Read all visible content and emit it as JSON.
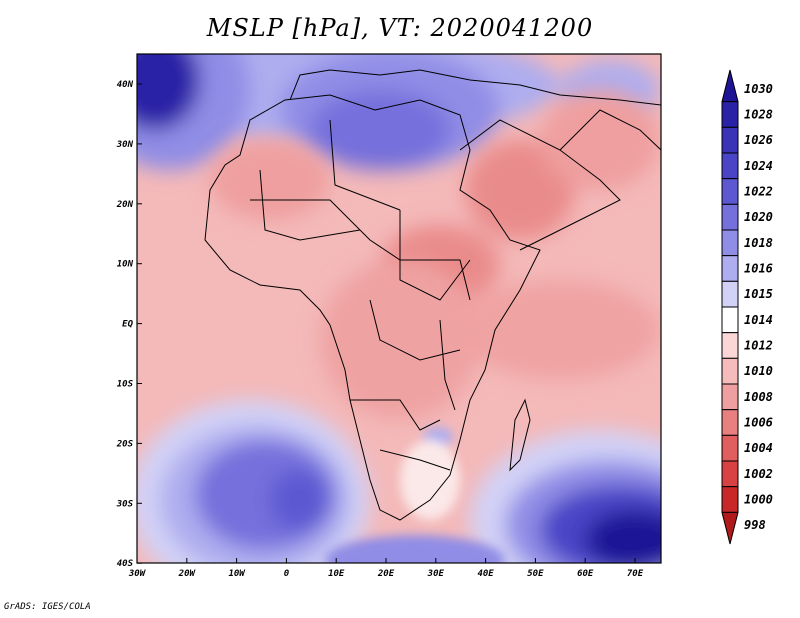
{
  "title": "MSLP [hPa], VT: 2020041200",
  "credit": "GrADS: IGES/COLA",
  "map": {
    "lon_labels": [
      "30W",
      "20W",
      "10W",
      "0",
      "10E",
      "20E",
      "30E",
      "40E",
      "50E",
      "60E",
      "70E"
    ],
    "lat_labels": [
      "40N",
      "30N",
      "20N",
      "10N",
      "EQ",
      "10S",
      "20S",
      "30S",
      "40S"
    ],
    "colors": {
      "ocean_base": "#f4b8b8",
      "land_base": "#f2a0a0",
      "coast": "#000000"
    }
  },
  "legend": {
    "levels": [
      "1030",
      "1028",
      "1026",
      "1024",
      "1022",
      "1020",
      "1018",
      "1016",
      "1015",
      "1014",
      "1012",
      "1010",
      "1008",
      "1006",
      "1004",
      "1002",
      "1000",
      "998"
    ],
    "colors": [
      "#1f1396",
      "#2a22a6",
      "#3a33b8",
      "#4a44c6",
      "#5c58d2",
      "#7470dc",
      "#908de6",
      "#aeadef",
      "#d2d2f7",
      "#ffffff",
      "#fbd6d6",
      "#f6bcbc",
      "#ef9f9f",
      "#e88080",
      "#e05e5e",
      "#d84242",
      "#c82828",
      "#b01a1a"
    ]
  }
}
